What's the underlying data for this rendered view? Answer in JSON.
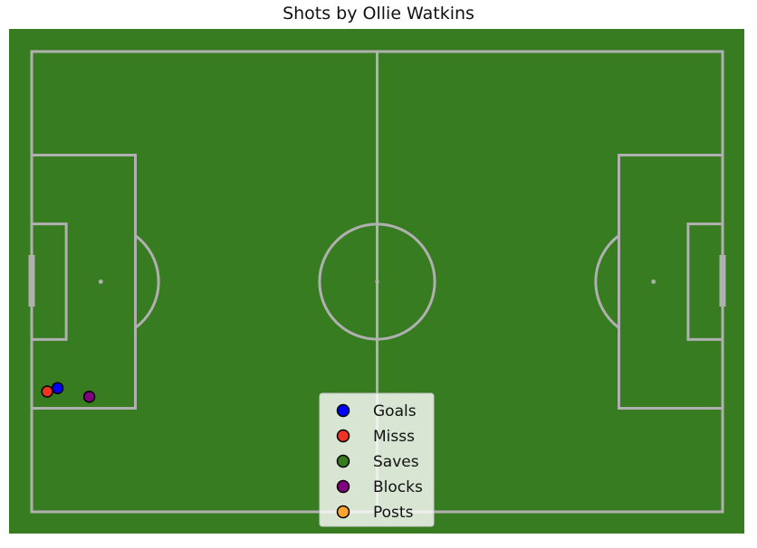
{
  "chart_data": {
    "type": "scatter",
    "title": "Shots by Ollie Watkins",
    "xlabel": "",
    "ylabel": "",
    "xlim": [
      0,
      120
    ],
    "ylim": [
      0,
      80
    ],
    "grid": false,
    "background": "#387c22",
    "line_color": "#b0b0b0",
    "legend_placement": "bottom-center",
    "series": [
      {
        "name": "Goals",
        "color": "#0000ff",
        "points": [
          {
            "x": 4.5,
            "y": 21.5
          }
        ]
      },
      {
        "name": "Misss",
        "color": "#ee3322",
        "points": [
          {
            "x": 2.7,
            "y": 20.9
          }
        ]
      },
      {
        "name": "Saves",
        "color": "#387c22",
        "points": []
      },
      {
        "name": "Blocks",
        "color": "#800080",
        "points": [
          {
            "x": 10.0,
            "y": 20.0
          }
        ]
      },
      {
        "name": "Posts",
        "color": "#ffa530",
        "points": []
      }
    ]
  }
}
